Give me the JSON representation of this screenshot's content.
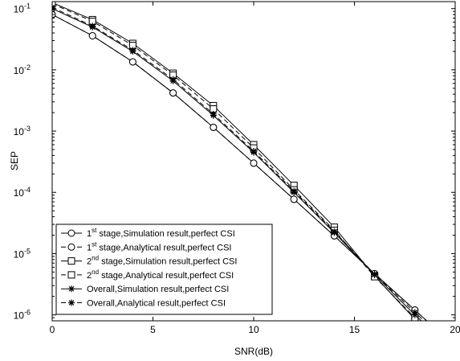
{
  "chart_data": {
    "type": "line",
    "title": "",
    "xlabel": "SNR(dB)",
    "ylabel": "SEP",
    "xlim": [
      0,
      20
    ],
    "ylim": [
      8e-07,
      0.13
    ],
    "y_scale": "log",
    "grid": false,
    "legend_position": "bottom-left",
    "x_ticks": [
      {
        "value": 0,
        "label": "0"
      },
      {
        "value": 5,
        "label": "5"
      },
      {
        "value": 10,
        "label": "10"
      },
      {
        "value": 15,
        "label": "15"
      },
      {
        "value": 20,
        "label": "20"
      }
    ],
    "y_ticks": [
      {
        "value": 0.1,
        "base": "10",
        "exp": "-1"
      },
      {
        "value": 0.01,
        "base": "10",
        "exp": "-2"
      },
      {
        "value": 0.001,
        "base": "10",
        "exp": "-3"
      },
      {
        "value": 0.0001,
        "base": "10",
        "exp": "-4"
      },
      {
        "value": 1e-05,
        "base": "10",
        "exp": "-5"
      },
      {
        "value": 1e-06,
        "base": "10",
        "exp": "-6"
      }
    ],
    "series": [
      {
        "name_parts": [
          "1",
          "st",
          " stage,Simulation result,perfect CSI"
        ],
        "marker": "circle",
        "dash": "solid",
        "color": "#000000",
        "x": [
          0,
          2,
          4,
          6,
          8,
          10,
          12,
          14,
          16,
          18,
          19
        ],
        "y": [
          0.08,
          0.036,
          0.0135,
          0.0042,
          0.00115,
          0.0003,
          7.7e-05,
          1.95e-05,
          4.7e-06,
          1.2e-06,
          6e-07
        ]
      },
      {
        "name_parts": [
          "1",
          "st",
          " stage,Analytical result,perfect CSI"
        ],
        "marker": "circle",
        "dash": "dashed",
        "color": "#000000",
        "x": [
          0,
          2,
          4,
          6,
          8,
          10,
          12,
          14,
          16,
          18,
          19
        ],
        "y": [
          0.08,
          0.036,
          0.0135,
          0.0042,
          0.00115,
          0.0003,
          7.7e-05,
          1.95e-05,
          4.7e-06,
          1.2e-06,
          6e-07
        ]
      },
      {
        "name_parts": [
          "2",
          "nd",
          " stage,Simulation result,perfect CSI"
        ],
        "marker": "square",
        "dash": "solid",
        "color": "#000000",
        "x": [
          0,
          2,
          4,
          6,
          8,
          10,
          12,
          14,
          16,
          18,
          19
        ],
        "y": [
          0.125,
          0.066,
          0.027,
          0.0088,
          0.0026,
          0.0006,
          0.00013,
          2.7e-05,
          4.3e-06,
          8.5e-07,
          4e-07
        ]
      },
      {
        "name_parts": [
          "2",
          "nd",
          " stage,Analytical result,perfect CSI"
        ],
        "marker": "square",
        "dash": "dashed",
        "color": "#000000",
        "x": [
          0,
          2,
          4,
          6,
          8,
          10,
          12,
          14,
          16,
          18,
          19
        ],
        "y": [
          0.12,
          0.062,
          0.025,
          0.0082,
          0.0023,
          0.00053,
          0.00011,
          2.4e-05,
          4.2e-06,
          9e-07,
          4.5e-07
        ]
      },
      {
        "name_parts": [
          "",
          "",
          "Overall,Simulation result,perfect CSI"
        ],
        "marker": "star",
        "dash": "solid",
        "color": "#000000",
        "x": [
          0,
          2,
          4,
          6,
          8,
          10,
          12,
          14,
          16,
          18,
          19
        ],
        "y": [
          0.1,
          0.05,
          0.02,
          0.0066,
          0.0018,
          0.00045,
          0.0001,
          2.2e-05,
          4.5e-06,
          1e-06,
          5e-07
        ]
      },
      {
        "name_parts": [
          "",
          "",
          "Overall,Analytical result,perfect CSI"
        ],
        "marker": "star",
        "dash": "dashed",
        "color": "#000000",
        "x": [
          0,
          2,
          4,
          6,
          8,
          10,
          12,
          14,
          16,
          18,
          19
        ],
        "y": [
          0.105,
          0.052,
          0.021,
          0.007,
          0.0019,
          0.00047,
          0.000105,
          2.3e-05,
          4.6e-06,
          1.1e-06,
          5.5e-07
        ]
      }
    ]
  }
}
